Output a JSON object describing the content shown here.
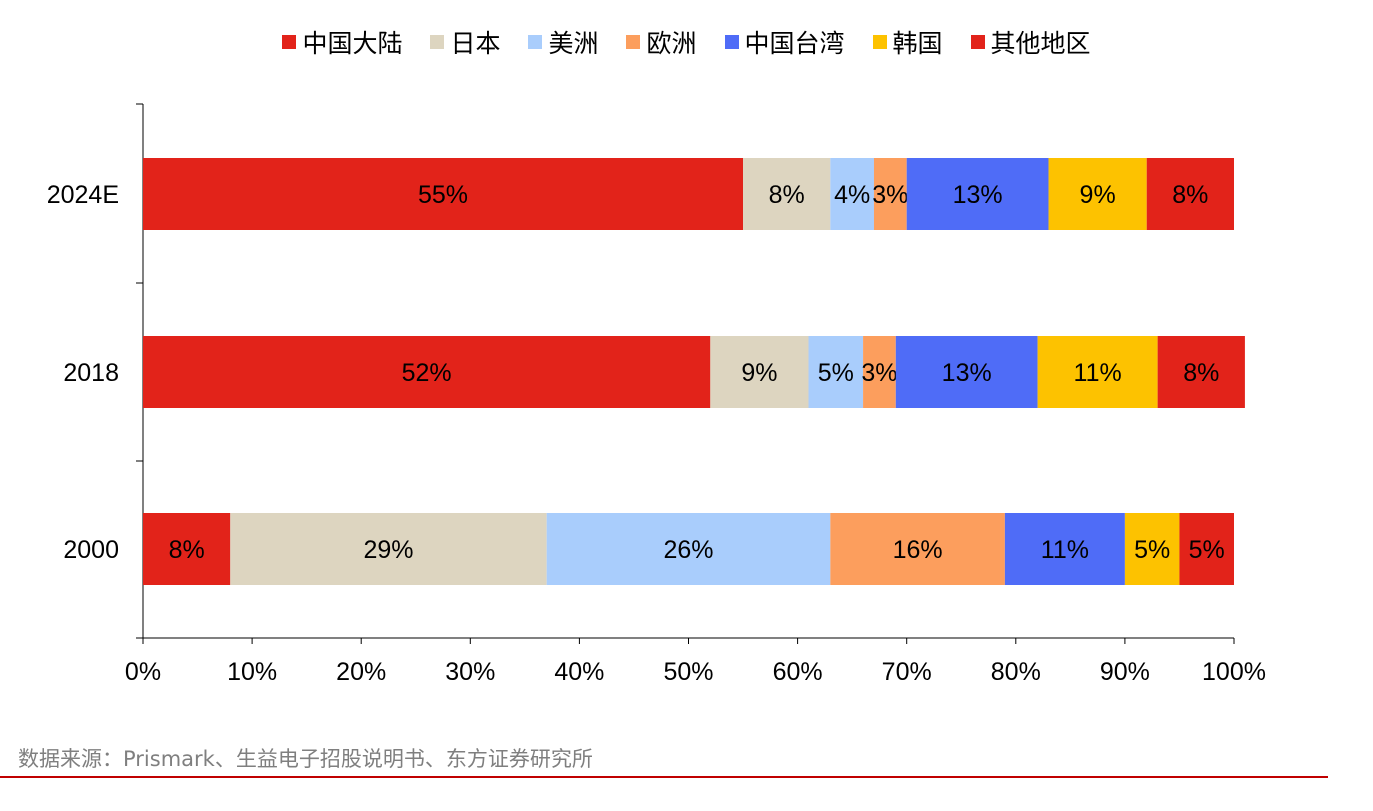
{
  "chart_data": {
    "type": "bar",
    "orientation": "horizontal",
    "stacked": true,
    "percent": true,
    "categories": [
      "2024E",
      "2018",
      "2000"
    ],
    "series": [
      {
        "name": "中国大陆",
        "color": "#e2231a",
        "values": [
          55,
          52,
          8
        ],
        "labels": [
          "55%",
          "52%",
          "8%"
        ]
      },
      {
        "name": "日本",
        "color": "#ddd5c0",
        "values": [
          8,
          9,
          29
        ],
        "labels": [
          "8%",
          "9%",
          "29%"
        ]
      },
      {
        "name": "美洲",
        "color": "#a9cdfc",
        "values": [
          4,
          5,
          26
        ],
        "labels": [
          "4%",
          "5%",
          "26%"
        ]
      },
      {
        "name": "欧洲",
        "color": "#fc9e5d",
        "values": [
          3,
          3,
          16
        ],
        "labels": [
          "3%",
          "3%",
          "16%"
        ]
      },
      {
        "name": "中国台湾",
        "color": "#4f6cf7",
        "values": [
          13,
          13,
          11
        ],
        "labels": [
          "13%",
          "13%",
          "11%"
        ]
      },
      {
        "name": "韩国",
        "color": "#fdc200",
        "values": [
          9,
          11,
          5
        ],
        "labels": [
          "9%",
          "11%",
          "5%"
        ]
      },
      {
        "name": "其他地区",
        "color": "#e2231a",
        "values": [
          8,
          8,
          5
        ],
        "labels": [
          "8%",
          "8%",
          "5%"
        ]
      }
    ],
    "xlim": [
      0,
      100
    ],
    "xticks": [
      "0%",
      "10%",
      "20%",
      "30%",
      "40%",
      "50%",
      "60%",
      "70%",
      "80%",
      "90%",
      "100%"
    ],
    "legend_position": "top",
    "grid": false
  },
  "source": "数据来源：Prismark、生益电子招股说明书、东方证券研究所"
}
